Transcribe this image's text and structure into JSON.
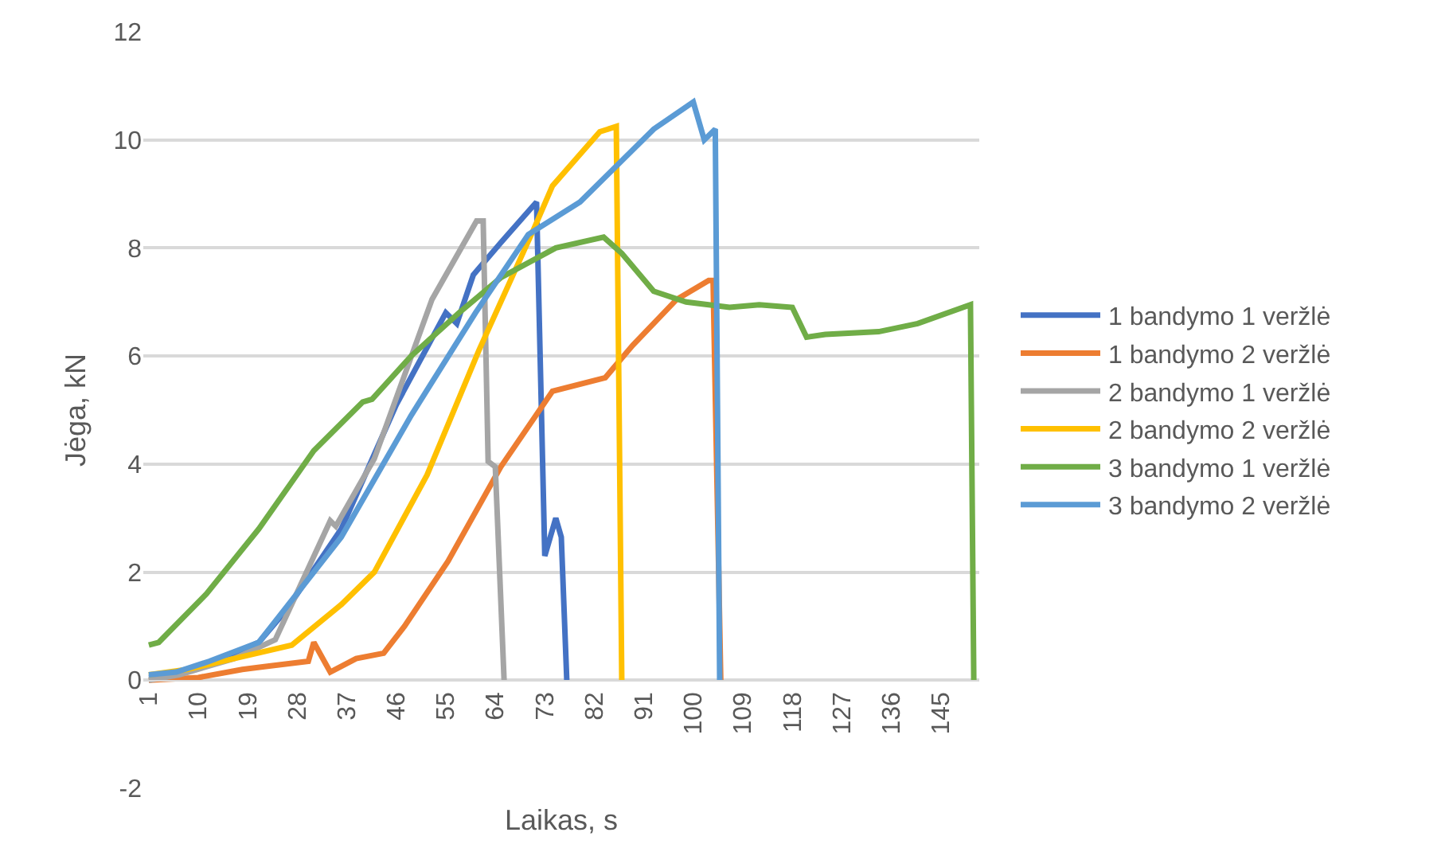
{
  "chart_data": {
    "type": "line",
    "xlabel": "Laikas, s",
    "ylabel": "Jėga, kN",
    "xlim": [
      0,
      152
    ],
    "xticks": [
      1,
      10,
      19,
      28,
      37,
      46,
      55,
      64,
      73,
      82,
      91,
      100,
      109,
      118,
      127,
      136,
      145
    ],
    "ylim": [
      -2,
      12
    ],
    "yticks": [
      -2,
      0,
      2,
      4,
      6,
      8,
      10,
      12
    ],
    "grid": "y",
    "legend": "right",
    "marker": "none",
    "line_style": "solid",
    "series": [
      {
        "name": "1 bandymo 1 veržlė",
        "color": "#4472c4",
        "x": [
          1,
          6,
          12,
          21,
          26,
          36,
          46,
          55,
          57,
          60,
          65,
          71.5,
          73,
          75,
          76,
          77
        ],
        "values": [
          0.05,
          0.1,
          0.3,
          0.7,
          1.3,
          2.8,
          5.1,
          6.8,
          6.6,
          7.5,
          8.1,
          8.85,
          2.3,
          3.0,
          2.65,
          0
        ]
      },
      {
        "name": "1 bandymo 2 veržlė",
        "color": "#ed7d31",
        "x": [
          1,
          10,
          18,
          22,
          30,
          31,
          34,
          38.7,
          43.7,
          47.5,
          55.4,
          65,
          74.4,
          84,
          89,
          97,
          102.8,
          103.6,
          105
        ],
        "values": [
          0,
          0.05,
          0.2,
          0.25,
          0.35,
          0.7,
          0.15,
          0.4,
          0.5,
          1.0,
          2.2,
          3.95,
          5.35,
          5.6,
          6.2,
          7.05,
          7.4,
          7.4,
          0
        ]
      },
      {
        "name": "2 bandymo 1 veržlė",
        "color": "#a5a5a5",
        "x": [
          1,
          6.5,
          16.5,
          24,
          34,
          35,
          42,
          52.5,
          60.6,
          61.8,
          62.7,
          64,
          65.6
        ],
        "values": [
          0,
          0.1,
          0.4,
          0.75,
          2.95,
          2.85,
          4.1,
          7.05,
          8.5,
          8.5,
          4.05,
          3.95,
          0
        ]
      },
      {
        "name": "2 bandymo 2 veržlė",
        "color": "#ffc000",
        "x": [
          1,
          8,
          16.5,
          27,
          36,
          42,
          51.6,
          61,
          71,
          74.4,
          83,
          86,
          87
        ],
        "values": [
          0.1,
          0.2,
          0.4,
          0.65,
          1.4,
          2.0,
          3.8,
          6.1,
          8.35,
          9.15,
          10.15,
          10.25,
          0
        ]
      },
      {
        "name": "3 bandymo 1 veržlė",
        "color": "#70ad47",
        "x": [
          1,
          2.8,
          11.5,
          21,
          31,
          39.9,
          41.6,
          48.7,
          57.4,
          65,
          75,
          83.7,
          87,
          92.8,
          98.7,
          106.6,
          112,
          118,
          120.6,
          124,
          133.7,
          140.8,
          150.4,
          151
        ],
        "values": [
          0.65,
          0.7,
          1.6,
          2.8,
          4.25,
          5.15,
          5.2,
          6.0,
          6.8,
          7.45,
          8.0,
          8.2,
          7.9,
          7.2,
          7.0,
          6.9,
          6.95,
          6.9,
          6.35,
          6.4,
          6.45,
          6.6,
          6.95,
          0
        ]
      },
      {
        "name": "3 bandymo 2 veržlė",
        "color": "#5b9bd5",
        "x": [
          1,
          6,
          12,
          21,
          36,
          48.7,
          60.4,
          70,
          79.4,
          92.8,
          100,
          102,
          104,
          104.8
        ],
        "values": [
          0.1,
          0.15,
          0.35,
          0.7,
          2.65,
          4.9,
          6.8,
          8.25,
          8.85,
          10.2,
          10.7,
          10.0,
          10.2,
          0
        ]
      }
    ]
  }
}
